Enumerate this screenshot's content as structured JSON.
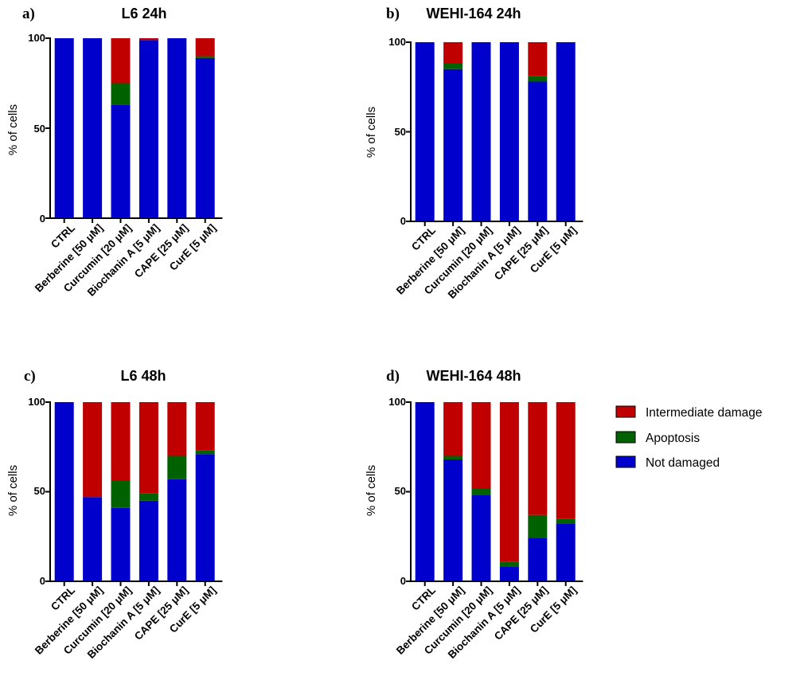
{
  "chart_data": [
    {
      "type": "bar",
      "stacked": true,
      "panel_label": "a)",
      "title": "L6 24h",
      "xlabel": "",
      "ylabel": "% of cells",
      "ylim": [
        0,
        100
      ],
      "yticks": [
        "0",
        "50",
        "100"
      ],
      "categories": [
        "CTRL",
        "Berberine [50 μM]",
        "Curcumin [20 μM]",
        "Biochanin A [5 μM]",
        "CAPE [25 μM]",
        "CurE [5 μM]"
      ],
      "series": [
        {
          "name": "Not damaged",
          "values": [
            100,
            100,
            63,
            99,
            100,
            89
          ]
        },
        {
          "name": "Apoptosis",
          "values": [
            0,
            0,
            12,
            0,
            0,
            1
          ]
        },
        {
          "name": "Intermediate damage",
          "values": [
            0,
            0,
            25,
            1,
            0,
            10
          ]
        }
      ]
    },
    {
      "type": "bar",
      "stacked": true,
      "panel_label": "b)",
      "title": "WEHI-164 24h",
      "xlabel": "",
      "ylabel": "% of cells",
      "ylim": [
        0,
        100
      ],
      "yticks": [
        "0",
        "50",
        "100"
      ],
      "categories": [
        "CTRL",
        "Berberine [50 μM]",
        "Curcumin [20 μM]",
        "Biochanin A [5 μM]",
        "CAPE [25 μM]",
        "CurE [5 μM]"
      ],
      "series": [
        {
          "name": "Not damaged",
          "values": [
            100,
            85,
            100,
            100,
            78,
            100
          ]
        },
        {
          "name": "Apoptosis",
          "values": [
            0,
            3,
            0,
            0,
            3,
            0
          ]
        },
        {
          "name": "Intermediate damage",
          "values": [
            0,
            12,
            0,
            0,
            19,
            0
          ]
        }
      ]
    },
    {
      "type": "bar",
      "stacked": true,
      "panel_label": "c)",
      "title": "L6 48h",
      "xlabel": "",
      "ylabel": "% of cells",
      "ylim": [
        0,
        100
      ],
      "yticks": [
        "0",
        "50",
        "100"
      ],
      "categories": [
        "CTRL",
        "Berberine [50 μM]",
        "Curcumin [20 μM]",
        "Biochanin A [5 μM]",
        "CAPE [25 μM]",
        "CurE [5 μM]"
      ],
      "series": [
        {
          "name": "Not damaged",
          "values": [
            100,
            47,
            41,
            45,
            57,
            71
          ]
        },
        {
          "name": "Apoptosis",
          "values": [
            0,
            0,
            15,
            4,
            13,
            2
          ]
        },
        {
          "name": "Intermediate damage",
          "values": [
            0,
            53,
            44,
            51,
            30,
            27
          ]
        }
      ]
    },
    {
      "type": "bar",
      "stacked": true,
      "panel_label": "d)",
      "title": "WEHI-164 48h",
      "xlabel": "",
      "ylabel": "% of cells",
      "ylim": [
        0,
        100
      ],
      "yticks": [
        "0",
        "50",
        "100"
      ],
      "categories": [
        "CTRL",
        "Berberine [50 μM]",
        "Curcumin [20 μM]",
        "Biochanin A [5 μM]",
        "CAPE [25 μM]",
        "CurE [5 μM]"
      ],
      "series": [
        {
          "name": "Not damaged",
          "values": [
            100,
            68,
            48,
            8,
            24,
            32
          ]
        },
        {
          "name": "Apoptosis",
          "values": [
            0,
            2,
            4,
            3,
            13,
            3
          ]
        },
        {
          "name": "Intermediate damage",
          "values": [
            0,
            30,
            48,
            89,
            63,
            65
          ]
        }
      ]
    }
  ],
  "legend": {
    "position": "right",
    "items": [
      {
        "label": "Intermediate damage",
        "color": "#C00000"
      },
      {
        "label": "Apoptosis",
        "color": "#006100"
      },
      {
        "label": "Not damaged",
        "color": "#0000CC"
      }
    ]
  },
  "colors": {
    "Not damaged": "#0000CC",
    "Apoptosis": "#006100",
    "Intermediate damage": "#C00000"
  }
}
